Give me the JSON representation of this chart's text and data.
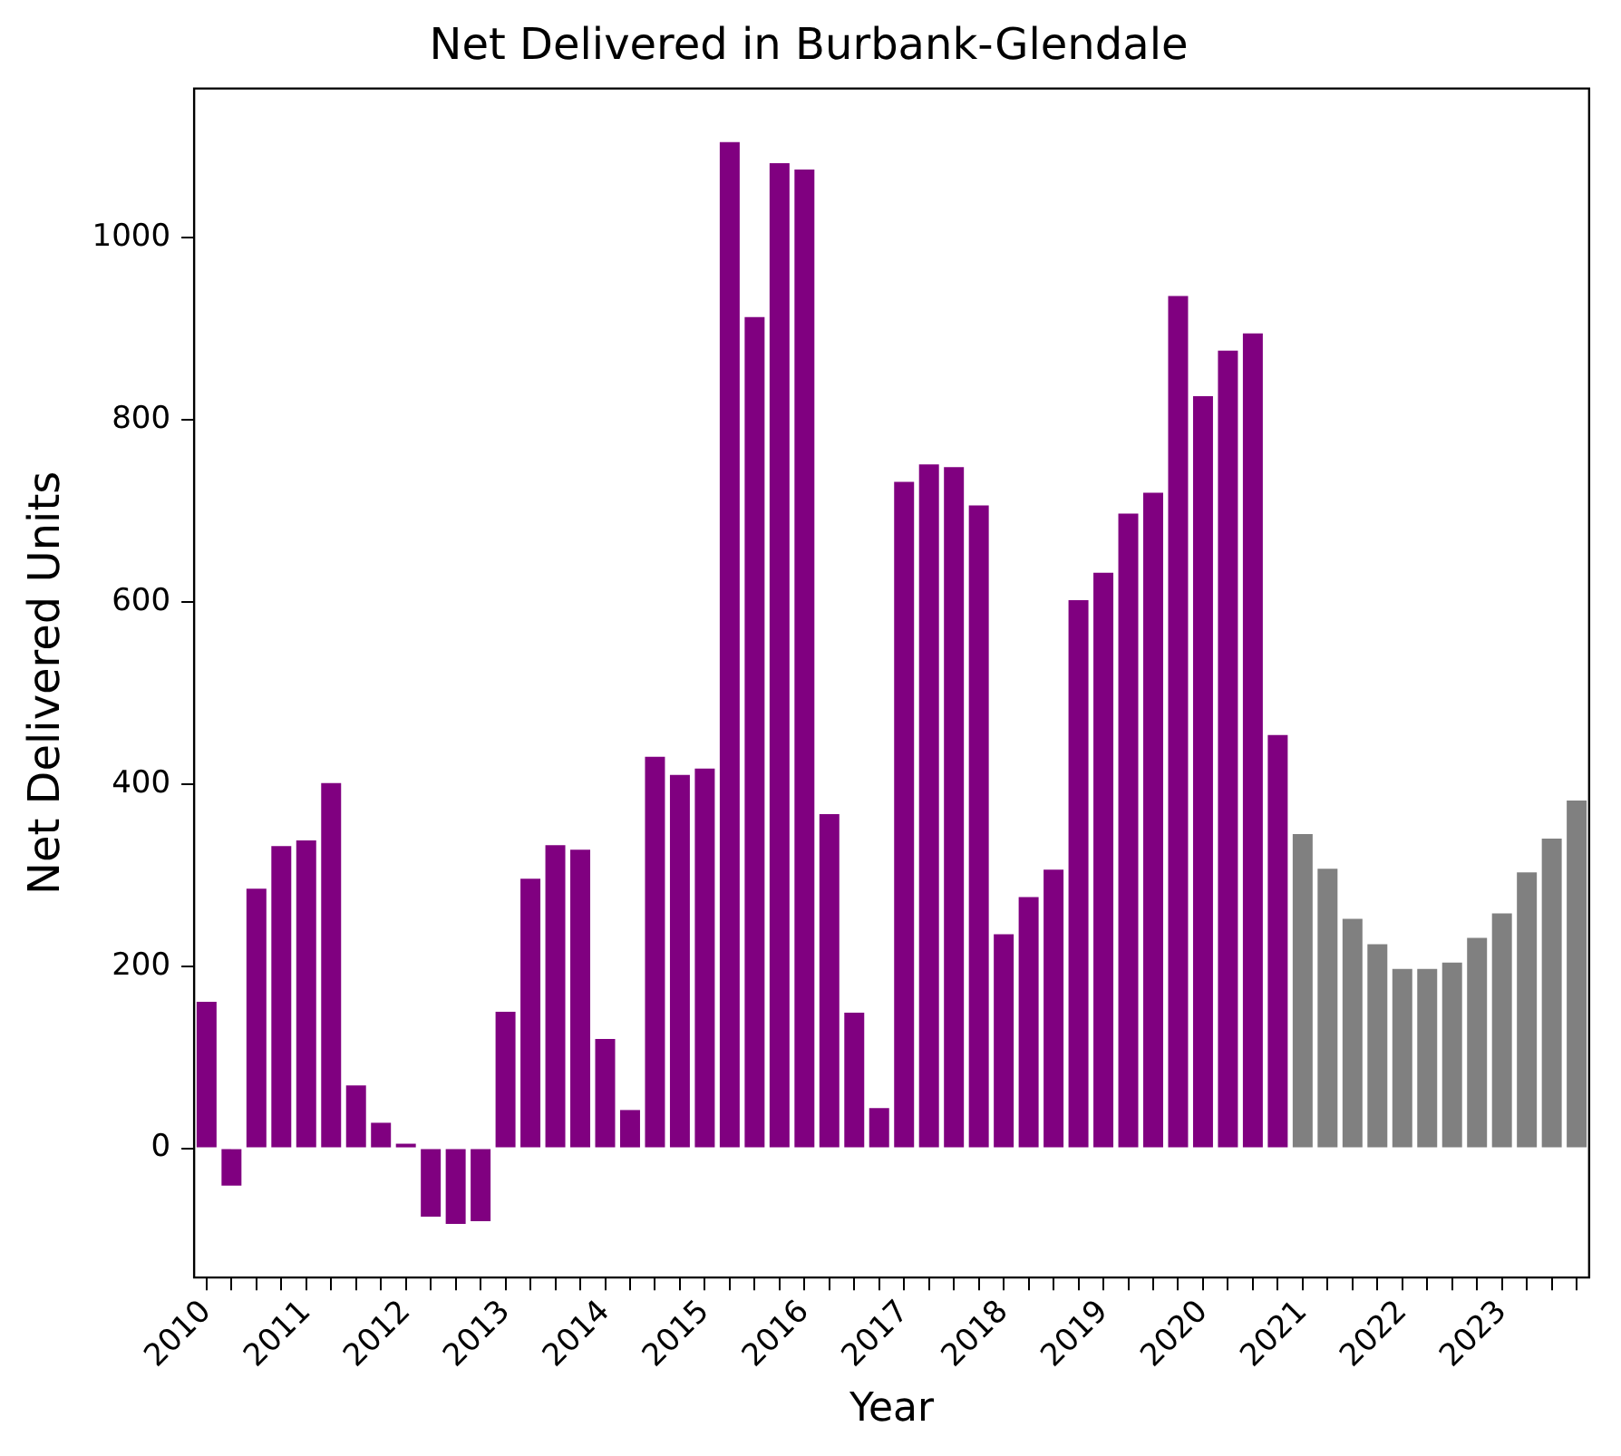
{
  "chart_data": {
    "type": "bar",
    "title": "Net Delivered in Burbank-Glendale",
    "xlabel": "Year",
    "ylabel": "Net Delivered Units",
    "categories": [
      "2010",
      null,
      null,
      null,
      "2011",
      null,
      null,
      null,
      "2012",
      null,
      null,
      null,
      "2013",
      null,
      null,
      null,
      "2014",
      null,
      null,
      null,
      "2015",
      null,
      null,
      null,
      "2016",
      null,
      null,
      null,
      "2017",
      null,
      null,
      null,
      "2018",
      null,
      null,
      null,
      "2019",
      null,
      null,
      null,
      "2020",
      null,
      null,
      null,
      "2021",
      null,
      null,
      null,
      "2022",
      null,
      null,
      null,
      "2023",
      null,
      null,
      null
    ],
    "values": [
      161,
      -41,
      285,
      332,
      338,
      401,
      69,
      28,
      5,
      -75,
      -83,
      -80,
      150,
      296,
      333,
      328,
      120,
      42,
      430,
      410,
      417,
      1105,
      913,
      1082,
      1075,
      367,
      149,
      44,
      732,
      751,
      748,
      706,
      235,
      276,
      306,
      602,
      632,
      697,
      720,
      936,
      826,
      876,
      895,
      454,
      345,
      307,
      252,
      224,
      197,
      197,
      204,
      231,
      258,
      303,
      340,
      382
    ],
    "colors": [
      "#800080",
      "#800080",
      "#800080",
      "#800080",
      "#800080",
      "#800080",
      "#800080",
      "#800080",
      "#800080",
      "#800080",
      "#800080",
      "#800080",
      "#800080",
      "#800080",
      "#800080",
      "#800080",
      "#800080",
      "#800080",
      "#800080",
      "#800080",
      "#800080",
      "#800080",
      "#800080",
      "#800080",
      "#800080",
      "#800080",
      "#800080",
      "#800080",
      "#800080",
      "#800080",
      "#800080",
      "#800080",
      "#800080",
      "#800080",
      "#800080",
      "#800080",
      "#800080",
      "#800080",
      "#800080",
      "#800080",
      "#800080",
      "#800080",
      "#800080",
      "#800080",
      "#808080",
      "#808080",
      "#808080",
      "#808080",
      "#808080",
      "#808080",
      "#808080",
      "#808080",
      "#808080",
      "#808080",
      "#808080",
      "#808080"
    ],
    "ylim": [
      -142,
      1164
    ],
    "yticks": [
      0,
      200,
      400,
      600,
      800,
      1000
    ]
  }
}
